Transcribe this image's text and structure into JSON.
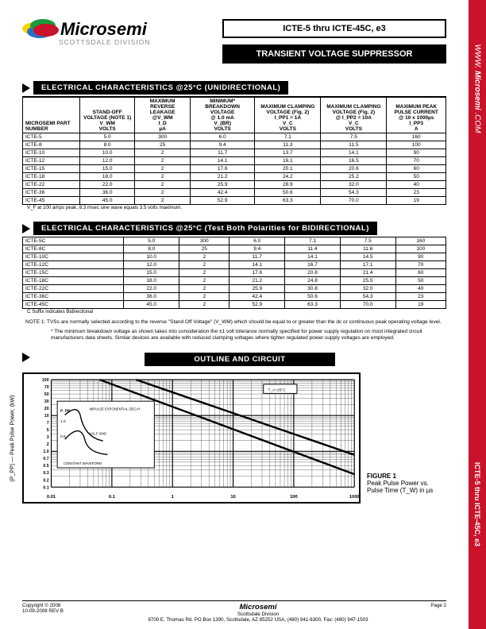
{
  "brand": {
    "name": "Microsemi",
    "division": "SCOTTSDALE DIVISION"
  },
  "title1": "ICTE-5 thru ICTE-45C, e3",
  "title2": "TRANSIENT VOLTAGE SUPPRESSOR",
  "sidebar": {
    "top": "WWW.",
    "mid": "Microsemi",
    "bot": ".COM",
    "partline": "ICTE-5 thru ICTE-45C, e3"
  },
  "sec1": {
    "heading": "ELECTRICAL CHARACTERISTICS @25°C (UNIDIRECTIONAL)",
    "cols": [
      "MICROSEMI PART NUMBER",
      "STAND-OFF VOLTAGE (NOTE 1)\nV_WM\nVOLTS",
      "MAXIMUM REVERSE LEAKAGE\n@V_WM\nI_D\nµA",
      "MINIMUM* BREAKDOWN VOLTAGE\n@ 1.0 mA\nV_(BR)\nVOLTS",
      "MAXIMUM CLAMPING VOLTAGE (Fig. 2)\nI_PP1 = 1A\nV_C\nVOLTS",
      "MAXIMUM CLAMPING VOLTAGE (Fig. 2)\n@ I_PP2 = 10A\nV_C\nVOLTS",
      "MAXIMUM PEAK PULSE CURRENT\n@ 10 x 1000µs\nI_PP3\nA"
    ],
    "rows": [
      [
        "ICTE-5",
        "5.0",
        "300",
        "6.0",
        "7.1",
        "7.5",
        "160"
      ],
      [
        "ICTE-8",
        "8.0",
        "25",
        "9.4",
        "11.3",
        "11.5",
        "100"
      ],
      [
        "ICTE-10",
        "10.0",
        "2",
        "11.7",
        "13.7",
        "14.1",
        "90"
      ],
      [
        "ICTE-12",
        "12.0",
        "2",
        "14.1",
        "16.1",
        "16.5",
        "70"
      ],
      [
        "ICTE-15",
        "15.0",
        "2",
        "17.6",
        "20.1",
        "20.6",
        "60"
      ],
      [
        "ICTE-18",
        "18.0",
        "2",
        "21.2",
        "24.2",
        "25.2",
        "50"
      ],
      [
        "ICTE-22",
        "22.0",
        "2",
        "25.9",
        "28.9",
        "32.0",
        "40"
      ],
      [
        "ICTE-36",
        "36.0",
        "2",
        "42.4",
        "50.6",
        "54.3",
        "23"
      ],
      [
        "ICTE-45",
        "45.0",
        "2",
        "52.9",
        "63.3",
        "70.0",
        "19"
      ]
    ],
    "footnote": "V_F at 100 amps peak, 8.3 msec sine wave equals 3.5 volts maximum."
  },
  "sec2": {
    "heading": "ELECTRICAL CHARACTERISTICS @25°C (Test Both Polarities for BIDIRECTIONAL)",
    "rows": [
      [
        "ICTE-5C",
        "5.0",
        "300",
        "6.0",
        "7.1",
        "7.5",
        "160"
      ],
      [
        "ICTE-8C",
        "8.0",
        "25",
        "9.4",
        "11.4",
        "11.6",
        "100"
      ],
      [
        "ICTE-10C",
        "10.0",
        "2",
        "11.7",
        "14.1",
        "14.5",
        "90"
      ],
      [
        "ICTE-12C",
        "12.0",
        "2",
        "14.1",
        "16.7",
        "17.1",
        "70"
      ],
      [
        "ICTE-15C",
        "15.0",
        "2",
        "17.6",
        "20.8",
        "21.4",
        "60"
      ],
      [
        "ICTE-18C",
        "18.0",
        "2",
        "21.2",
        "24.8",
        "25.5",
        "50"
      ],
      [
        "ICTE-22C",
        "22.0",
        "2",
        "25.9",
        "30.8",
        "32.0",
        "40"
      ],
      [
        "ICTE-36C",
        "36.0",
        "2",
        "42.4",
        "50.6",
        "54.3",
        "23"
      ],
      [
        "ICTE-45C",
        "45.0",
        "2",
        "52.9",
        "63.3",
        "70.0",
        "19"
      ]
    ],
    "footnote": "C Suffix indicates Bidirectional"
  },
  "note1": {
    "label": "NOTE 1:",
    "body": "TVSs are normally selected according to the reverse \"Stand Off Voltage\" (V_WM) which should be equal to or greater than the dc or continuous peak operating voltage level.",
    "star": "* The minimum breakdown voltage as shown takes into consideration the ±1 volt tolerance normally specified for power supply regulation on most integrated circuit manufacturers data sheets. Similar devices are available with reduced clamping voltages where tighter regulated power supply voltages are employed."
  },
  "sec3": "OUTLINE AND CIRCUIT",
  "fig1": {
    "label": "FIGURE 1",
    "caption": "Peak Pulse Power vs. Pulse Time (T_W) in µs",
    "ylabel": "(P_PP) — Peak Pulse Power, (kW)",
    "ytick": [
      "100",
      "70",
      "50",
      "30",
      "20",
      "10",
      "7",
      "5",
      "3",
      "2",
      "1.0",
      "0.7",
      "0.5",
      "0.3",
      "0.2",
      "0.1"
    ],
    "xtick": [
      "0.01",
      "0.1",
      "1",
      "10",
      "100",
      "1000"
    ],
    "annot1": "IMPULSE EXPONENTIAL DECAY",
    "annot2": "HALF SINE",
    "annot3": "CONSTANT WAVEFORM",
    "annot4": "T_A=25°C",
    "annot5": "P_PP",
    "annot6": "1.0",
    "annot7": "0.5"
  },
  "footer": {
    "copyright": "Copyright © 2008",
    "rev": "10-09-2008 REV B",
    "company": "Microsemi",
    "division": "Scottsdale Division",
    "address": "8700 E. Thomas Rd. PO Box 1390, Scottsdale, AZ 85252 USA, (480) 941-6300, Fax: (480) 947-1503",
    "page": "Page 2"
  }
}
